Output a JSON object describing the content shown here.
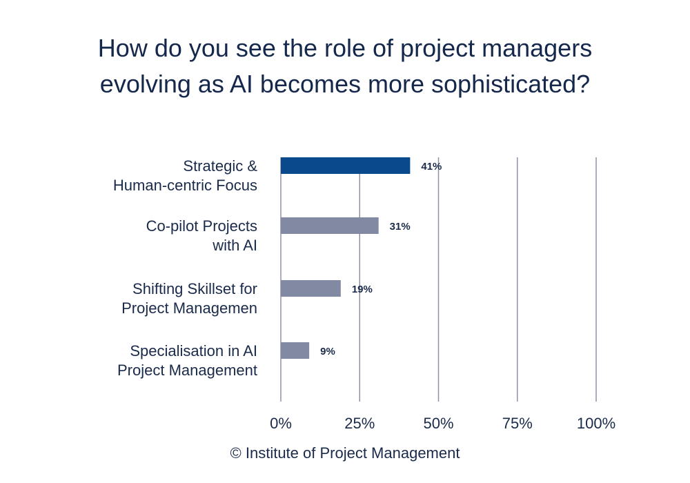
{
  "title_lines": [
    "How do you see the role of project managers",
    "evolving as AI becomes more sophisticated?"
  ],
  "footer": "© Institute of Project Management",
  "colors": {
    "highlight_bar": "#0a4a8c",
    "bar": "#8289a3",
    "gridline": "#8d92a8",
    "text": "#1a2a4a"
  },
  "chart_data": {
    "type": "bar",
    "orientation": "horizontal",
    "categories": [
      [
        "Strategic &",
        "Human-centric Focus"
      ],
      [
        "Co-pilot Projects",
        "with AI"
      ],
      [
        "Shifting Skillset for",
        "Project Managemen"
      ],
      [
        "Specialisation in AI",
        "Project Management"
      ]
    ],
    "values": [
      41,
      31,
      19,
      9
    ],
    "value_labels": [
      "41%",
      "31%",
      "19%",
      "9%"
    ],
    "xlim": [
      0,
      100
    ],
    "ticks": [
      0,
      25,
      50,
      75,
      100
    ],
    "tick_labels": [
      "0%",
      "25%",
      "50%",
      "75%",
      "100%"
    ],
    "highlight_index": 0,
    "grid": true
  }
}
